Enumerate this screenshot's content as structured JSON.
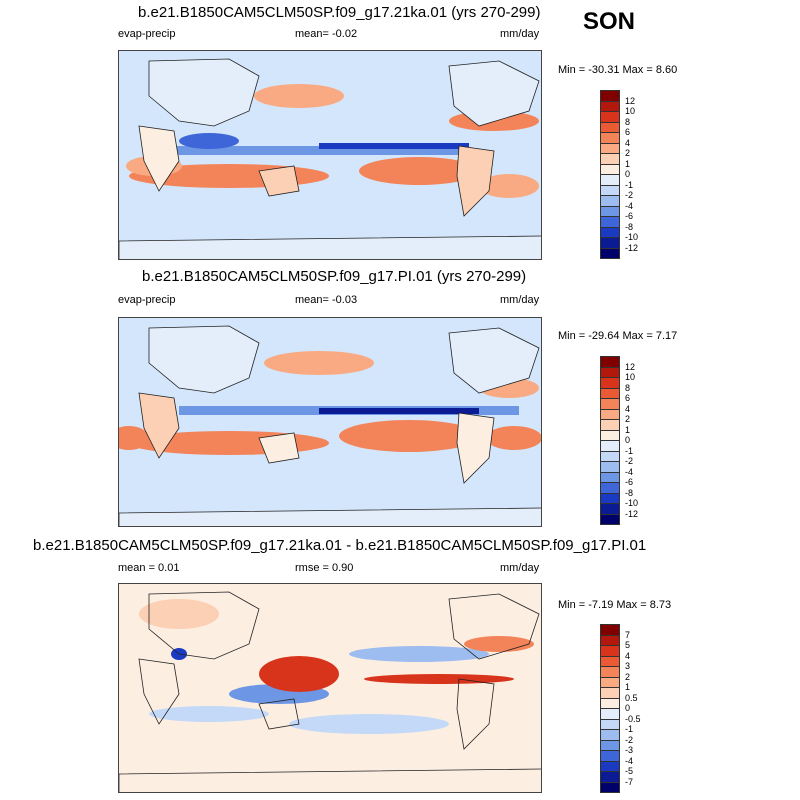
{
  "season": "SON",
  "panels": [
    {
      "title": "b.e21.B1850CAM5CLM50SP.f09_g17.21ka.01 (yrs 270-299)",
      "left_label": "evap-precip",
      "mid_label": "mean=  -0.02",
      "units": "mm/day",
      "minmax": "Min = -30.31 Max =   8.60",
      "levels": [
        "12",
        "10",
        "8",
        "6",
        "4",
        "2",
        "1",
        "0",
        "-1",
        "-2",
        "-4",
        "-6",
        "-8",
        "-10",
        "-12"
      ]
    },
    {
      "title": "b.e21.B1850CAM5CLM50SP.f09_g17.PI.01 (yrs 270-299)",
      "left_label": "evap-precip",
      "mid_label": "mean=  -0.03",
      "units": "mm/day",
      "minmax": "Min = -29.64 Max =   7.17",
      "levels": [
        "12",
        "10",
        "8",
        "6",
        "4",
        "2",
        "1",
        "0",
        "-1",
        "-2",
        "-4",
        "-6",
        "-8",
        "-10",
        "-12"
      ]
    },
    {
      "title": "b.e21.B1850CAM5CLM50SP.f09_g17.21ka.01 - b.e21.B1850CAM5CLM50SP.f09_g17.PI.01",
      "left_label": "mean =   0.01",
      "mid_label": "rmse =   0.90",
      "units": "mm/day",
      "minmax": "Min =  -7.19 Max =   8.73",
      "levels": [
        "7",
        "5",
        "4",
        "3",
        "2",
        "1",
        "0.5",
        "0",
        "-0.5",
        "-1",
        "-2",
        "-3",
        "-4",
        "-5",
        "-7"
      ]
    }
  ],
  "colors": {
    "scale": [
      "#800000",
      "#b3180c",
      "#d8341b",
      "#ea5a35",
      "#f38358",
      "#f9aa82",
      "#fcd0b4",
      "#fdeee2",
      "#e4eefb",
      "#c3d9f7",
      "#9dbcf0",
      "#6d96e4",
      "#3f66d8",
      "#1b3ac2",
      "#0a1b93",
      "#00006a"
    ],
    "map_bg": "#d4e6fb"
  }
}
